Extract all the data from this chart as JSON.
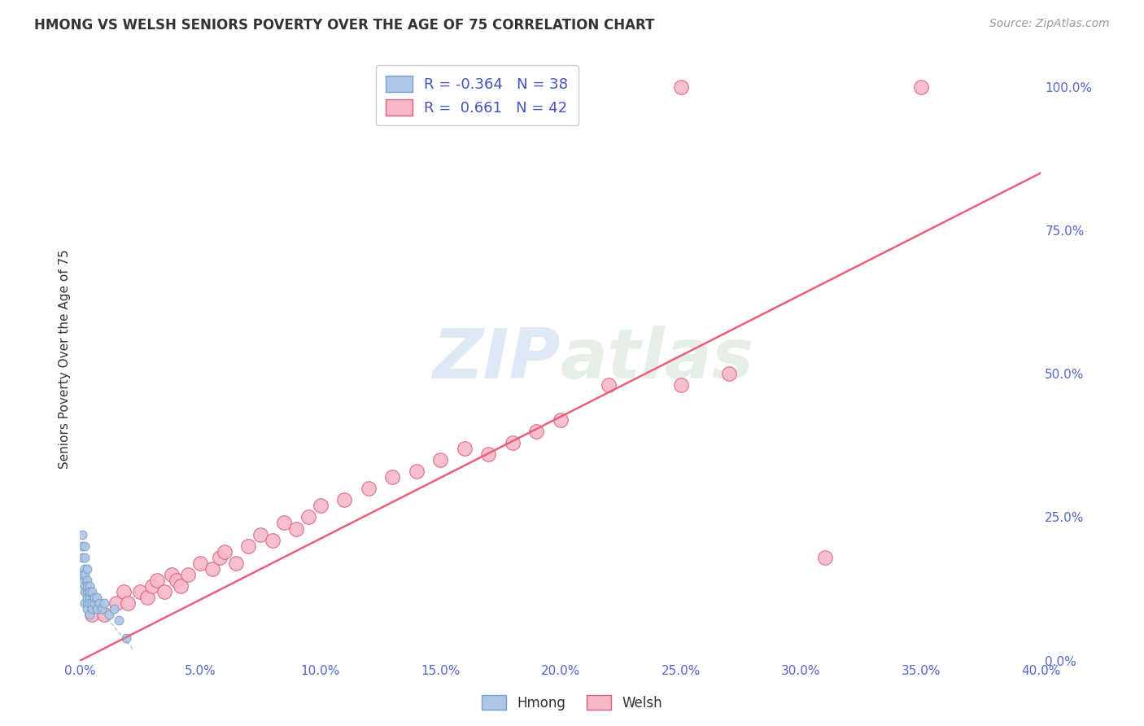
{
  "title": "HMONG VS WELSH SENIORS POVERTY OVER THE AGE OF 75 CORRELATION CHART",
  "source": "Source: ZipAtlas.com",
  "ylabel": "Seniors Poverty Over the Age of 75",
  "watermark_zip": "ZIP",
  "watermark_atlas": "atlas",
  "hmong_R": -0.364,
  "hmong_N": 38,
  "welsh_R": 0.661,
  "welsh_N": 42,
  "hmong_color": "#aec6e8",
  "welsh_color": "#f5b8c8",
  "hmong_edge_color": "#7aA0c8",
  "welsh_edge_color": "#e06080",
  "welsh_line_color": "#e8607a",
  "hmong_line_color": "#8ab0cc",
  "background_color": "#ffffff",
  "grid_color": "#cccccc",
  "title_color": "#333333",
  "axis_tick_color": "#5566cc",
  "xlim": [
    0.0,
    0.4
  ],
  "ylim": [
    0.0,
    1.05
  ],
  "xticks": [
    0.0,
    0.05,
    0.1,
    0.15,
    0.2,
    0.25,
    0.3,
    0.35,
    0.4
  ],
  "yticks_right": [
    0.0,
    0.25,
    0.5,
    0.75,
    1.0
  ],
  "hmong_x": [
    0.001,
    0.001,
    0.001,
    0.001,
    0.002,
    0.002,
    0.002,
    0.002,
    0.002,
    0.002,
    0.002,
    0.002,
    0.003,
    0.003,
    0.003,
    0.003,
    0.003,
    0.003,
    0.003,
    0.004,
    0.004,
    0.004,
    0.004,
    0.004,
    0.005,
    0.005,
    0.005,
    0.006,
    0.006,
    0.007,
    0.007,
    0.008,
    0.009,
    0.01,
    0.012,
    0.014,
    0.016,
    0.019
  ],
  "hmong_y": [
    0.18,
    0.2,
    0.22,
    0.15,
    0.14,
    0.16,
    0.18,
    0.2,
    0.13,
    0.12,
    0.1,
    0.15,
    0.12,
    0.14,
    0.16,
    0.1,
    0.11,
    0.13,
    0.09,
    0.11,
    0.13,
    0.1,
    0.12,
    0.08,
    0.1,
    0.12,
    0.09,
    0.1,
    0.11,
    0.09,
    0.11,
    0.1,
    0.09,
    0.1,
    0.08,
    0.09,
    0.07,
    0.04
  ],
  "welsh_x": [
    0.005,
    0.01,
    0.015,
    0.018,
    0.02,
    0.025,
    0.028,
    0.03,
    0.032,
    0.035,
    0.038,
    0.04,
    0.042,
    0.045,
    0.05,
    0.055,
    0.058,
    0.06,
    0.065,
    0.07,
    0.075,
    0.08,
    0.085,
    0.09,
    0.095,
    0.1,
    0.11,
    0.12,
    0.13,
    0.14,
    0.15,
    0.16,
    0.17,
    0.18,
    0.19,
    0.2,
    0.22,
    0.25,
    0.27,
    0.31,
    0.25,
    0.35
  ],
  "welsh_y": [
    0.08,
    0.08,
    0.1,
    0.12,
    0.1,
    0.12,
    0.11,
    0.13,
    0.14,
    0.12,
    0.15,
    0.14,
    0.13,
    0.15,
    0.17,
    0.16,
    0.18,
    0.19,
    0.17,
    0.2,
    0.22,
    0.21,
    0.24,
    0.23,
    0.25,
    0.27,
    0.28,
    0.3,
    0.32,
    0.33,
    0.35,
    0.37,
    0.36,
    0.38,
    0.4,
    0.42,
    0.48,
    0.48,
    0.5,
    0.18,
    1.0,
    1.0
  ],
  "hmong_scatter_size": 60,
  "welsh_scatter_size": 160
}
